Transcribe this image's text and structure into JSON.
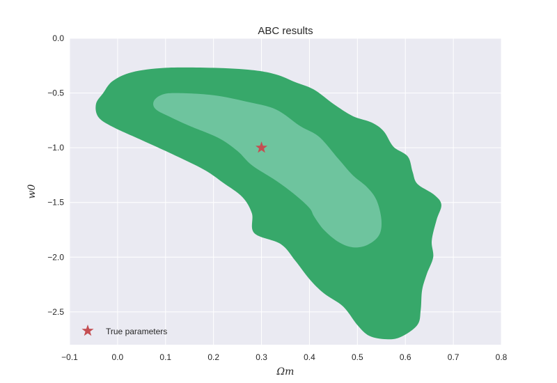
{
  "chart_data": {
    "type": "contour",
    "title": "ABC results",
    "xlabel": "Ωm",
    "ylabel": "w0",
    "xlim": [
      -0.1,
      0.8
    ],
    "ylim": [
      -2.8,
      0.0
    ],
    "xticks": [
      -0.1,
      0.0,
      0.1,
      0.2,
      0.3,
      0.4,
      0.5,
      0.6,
      0.7,
      0.8
    ],
    "xtick_labels": [
      "−0.1",
      "0.0",
      "0.1",
      "0.2",
      "0.3",
      "0.4",
      "0.5",
      "0.6",
      "0.7",
      "0.8"
    ],
    "yticks": [
      0.0,
      -0.5,
      -1.0,
      -1.5,
      -2.0,
      -2.5
    ],
    "ytick_labels": [
      "0.0",
      "−0.5",
      "−1.0",
      "−1.5",
      "−2.0",
      "−2.5"
    ],
    "grid": true,
    "background": "#eaeaf2",
    "legend": {
      "position": "bottom-left",
      "entries": [
        {
          "label": "True parameters",
          "marker": "star",
          "color": "#c44e52"
        }
      ]
    },
    "regions": [
      {
        "level": "outer",
        "color": "#37a86a",
        "boundary": [
          [
            -0.03,
            -0.5
          ],
          [
            -0.01,
            -0.39
          ],
          [
            0.03,
            -0.31
          ],
          [
            0.1,
            -0.27
          ],
          [
            0.2,
            -0.27
          ],
          [
            0.28,
            -0.29
          ],
          [
            0.33,
            -0.33
          ],
          [
            0.37,
            -0.4
          ],
          [
            0.41,
            -0.47
          ],
          [
            0.45,
            -0.6
          ],
          [
            0.49,
            -0.71
          ],
          [
            0.53,
            -0.77
          ],
          [
            0.555,
            -0.85
          ],
          [
            0.575,
            -0.99
          ],
          [
            0.605,
            -1.08
          ],
          [
            0.615,
            -1.22
          ],
          [
            0.625,
            -1.33
          ],
          [
            0.66,
            -1.43
          ],
          [
            0.675,
            -1.52
          ],
          [
            0.665,
            -1.66
          ],
          [
            0.655,
            -1.85
          ],
          [
            0.658,
            -2.0
          ],
          [
            0.645,
            -2.15
          ],
          [
            0.635,
            -2.3
          ],
          [
            0.632,
            -2.48
          ],
          [
            0.625,
            -2.62
          ],
          [
            0.59,
            -2.73
          ],
          [
            0.56,
            -2.75
          ],
          [
            0.525,
            -2.72
          ],
          [
            0.5,
            -2.62
          ],
          [
            0.47,
            -2.45
          ],
          [
            0.43,
            -2.33
          ],
          [
            0.4,
            -2.2
          ],
          [
            0.37,
            -2.03
          ],
          [
            0.34,
            -1.88
          ],
          [
            0.285,
            -1.78
          ],
          [
            0.28,
            -1.6
          ],
          [
            0.26,
            -1.45
          ],
          [
            0.22,
            -1.32
          ],
          [
            0.18,
            -1.2
          ],
          [
            0.11,
            -1.05
          ],
          [
            0.05,
            -0.93
          ],
          [
            -0.01,
            -0.81
          ],
          [
            -0.04,
            -0.72
          ],
          [
            -0.045,
            -0.6
          ]
        ]
      },
      {
        "level": "inner",
        "color": "#6ec49e",
        "boundary": [
          [
            0.075,
            -0.58
          ],
          [
            0.09,
            -0.52
          ],
          [
            0.12,
            -0.5
          ],
          [
            0.2,
            -0.52
          ],
          [
            0.27,
            -0.58
          ],
          [
            0.33,
            -0.65
          ],
          [
            0.38,
            -0.8
          ],
          [
            0.42,
            -0.9
          ],
          [
            0.46,
            -1.1
          ],
          [
            0.49,
            -1.25
          ],
          [
            0.52,
            -1.36
          ],
          [
            0.54,
            -1.48
          ],
          [
            0.55,
            -1.66
          ],
          [
            0.545,
            -1.8
          ],
          [
            0.52,
            -1.89
          ],
          [
            0.49,
            -1.91
          ],
          [
            0.46,
            -1.86
          ],
          [
            0.43,
            -1.75
          ],
          [
            0.41,
            -1.63
          ],
          [
            0.4,
            -1.55
          ],
          [
            0.37,
            -1.43
          ],
          [
            0.33,
            -1.3
          ],
          [
            0.28,
            -1.16
          ],
          [
            0.25,
            -1.03
          ],
          [
            0.21,
            -0.91
          ],
          [
            0.15,
            -0.8
          ],
          [
            0.11,
            -0.72
          ],
          [
            0.08,
            -0.65
          ]
        ]
      }
    ],
    "points": [
      {
        "name": "True parameters",
        "x": 0.3,
        "y": -1.0,
        "marker": "star",
        "color": "#c44e52"
      }
    ]
  }
}
